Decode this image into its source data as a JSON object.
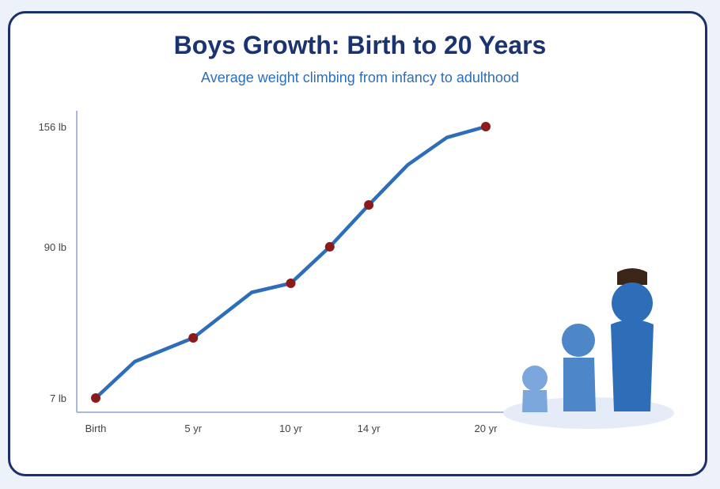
{
  "title": "Boys Growth: Birth to 20 Years",
  "subtitle": "Average weight climbing from infancy to adulthood",
  "colors": {
    "line": "#2e6db8",
    "marker": "#8b1a1a",
    "axis": "#aab8dc",
    "card_border": "#1b2f6b",
    "title": "#1b3370",
    "subtitle": "#2e6db8"
  },
  "chart_data": {
    "type": "line",
    "title": "Boys Growth: Birth to 20 Years",
    "subtitle": "Average weight climbing from infancy to adulthood",
    "xlabel": "",
    "ylabel": "",
    "xlim": [
      0,
      20
    ],
    "ylim": [
      7,
      156
    ],
    "x_ticks": [
      {
        "value": 0,
        "label": "Birth"
      },
      {
        "value": 5,
        "label": "5 yr"
      },
      {
        "value": 10,
        "label": "10 yr"
      },
      {
        "value": 14,
        "label": "14 yr"
      },
      {
        "value": 20,
        "label": "20 yr"
      }
    ],
    "y_ticks": [
      {
        "value": 7,
        "label": "7 lb"
      },
      {
        "value": 90,
        "label": "90 lb"
      },
      {
        "value": 156,
        "label": "156 lb"
      }
    ],
    "grid": false,
    "series": [
      {
        "x": [
          0,
          2,
          5,
          8,
          10,
          12,
          14,
          16,
          18,
          20
        ],
        "y": [
          7,
          27,
          40,
          65,
          70,
          90,
          113,
          135,
          150,
          156
        ]
      }
    ],
    "markers_at_x": [
      0,
      5,
      10,
      12,
      14,
      20
    ]
  },
  "illustration": {
    "name": "boys-growth-figures",
    "figures": [
      "infant-figure",
      "child-figure",
      "adult-figure"
    ]
  }
}
